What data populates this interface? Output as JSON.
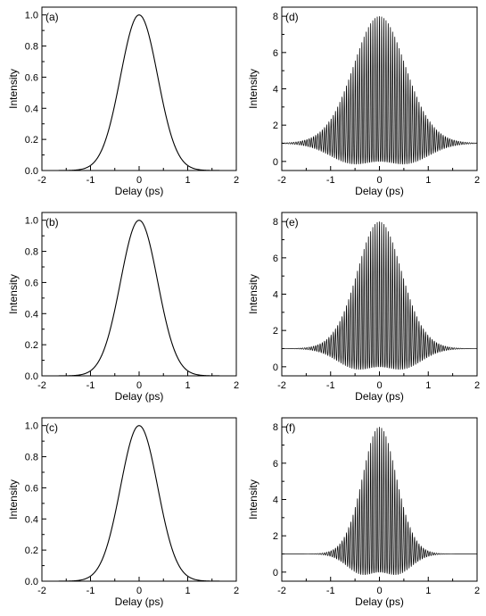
{
  "chart_data": [
    {
      "type": "line",
      "panel_label": "(a)",
      "xlabel": "Delay (ps)",
      "ylabel": "Intensity",
      "xlim": [
        -2,
        2
      ],
      "ylim": [
        0,
        1.05
      ],
      "xticks": [
        -2,
        -1,
        0,
        1,
        2
      ],
      "yticks": [
        0.0,
        0.2,
        0.4,
        0.6,
        0.8,
        1.0
      ],
      "ytick_labels": [
        "0.0",
        "0.2",
        "0.4",
        "0.6",
        "0.8",
        "1.0"
      ],
      "curve": "gaussian",
      "peak": 1.0,
      "center": 0,
      "fwhm_ps": 0.9
    },
    {
      "type": "line",
      "panel_label": "(b)",
      "xlabel": "Delay (ps)",
      "ylabel": "Intensity",
      "xlim": [
        -2,
        2
      ],
      "ylim": [
        0,
        1.05
      ],
      "xticks": [
        -2,
        -1,
        0,
        1,
        2
      ],
      "yticks": [
        0.0,
        0.2,
        0.4,
        0.6,
        0.8,
        1.0
      ],
      "ytick_labels": [
        "0.0",
        "0.2",
        "0.4",
        "0.6",
        "0.8",
        "1.0"
      ],
      "curve": "gaussian",
      "peak": 1.0,
      "center": 0,
      "fwhm_ps": 0.9
    },
    {
      "type": "line",
      "panel_label": "(c)",
      "xlabel": "Delay (ps)",
      "ylabel": "Intensity",
      "xlim": [
        -2,
        2
      ],
      "ylim": [
        0,
        1.05
      ],
      "xticks": [
        -2,
        -1,
        0,
        1,
        2
      ],
      "yticks": [
        0.0,
        0.2,
        0.4,
        0.6,
        0.8,
        1.0
      ],
      "ytick_labels": [
        "0.0",
        "0.2",
        "0.4",
        "0.6",
        "0.8",
        "1.0"
      ],
      "curve": "gaussian",
      "peak": 1.0,
      "center": 0,
      "fwhm_ps": 0.9
    },
    {
      "type": "line",
      "panel_label": "(d)",
      "xlabel": "Delay (ps)",
      "ylabel": "Intensity",
      "xlim": [
        -2,
        2
      ],
      "ylim": [
        -0.5,
        8.5
      ],
      "xticks": [
        -2,
        -1,
        0,
        1,
        2
      ],
      "yticks": [
        0,
        2,
        4,
        6,
        8
      ],
      "ytick_labels": [
        "0",
        "2",
        "4",
        "6",
        "8"
      ],
      "curve": "interferometric_autocorrelation",
      "background": 1,
      "peak": 8,
      "min": 0,
      "center": 0,
      "fringe_period_ps": 0.045,
      "envelope_fwhm_ps": 1.0
    },
    {
      "type": "line",
      "panel_label": "(e)",
      "xlabel": "Delay (ps)",
      "ylabel": "Intensity",
      "xlim": [
        -2,
        2
      ],
      "ylim": [
        -0.5,
        8.5
      ],
      "xticks": [
        -2,
        -1,
        0,
        1,
        2
      ],
      "yticks": [
        0,
        2,
        4,
        6,
        8
      ],
      "ytick_labels": [
        "0",
        "2",
        "4",
        "6",
        "8"
      ],
      "curve": "interferometric_autocorrelation",
      "background": 1,
      "peak": 8,
      "min": 0,
      "center": 0,
      "fringe_period_ps": 0.045,
      "envelope_fwhm_ps": 0.85
    },
    {
      "type": "line",
      "panel_label": "(f)",
      "xlabel": "Delay (ps)",
      "ylabel": "Intensity",
      "xlim": [
        -2,
        2
      ],
      "ylim": [
        -0.5,
        8.5
      ],
      "xticks": [
        -2,
        -1,
        0,
        1,
        2
      ],
      "yticks": [
        0,
        2,
        4,
        6,
        8
      ],
      "ytick_labels": [
        "0",
        "2",
        "4",
        "6",
        "8"
      ],
      "curve": "interferometric_autocorrelation",
      "background": 1,
      "peak": 8,
      "min": 0,
      "center": 0,
      "fringe_period_ps": 0.045,
      "envelope_fwhm_ps": 0.65
    }
  ]
}
